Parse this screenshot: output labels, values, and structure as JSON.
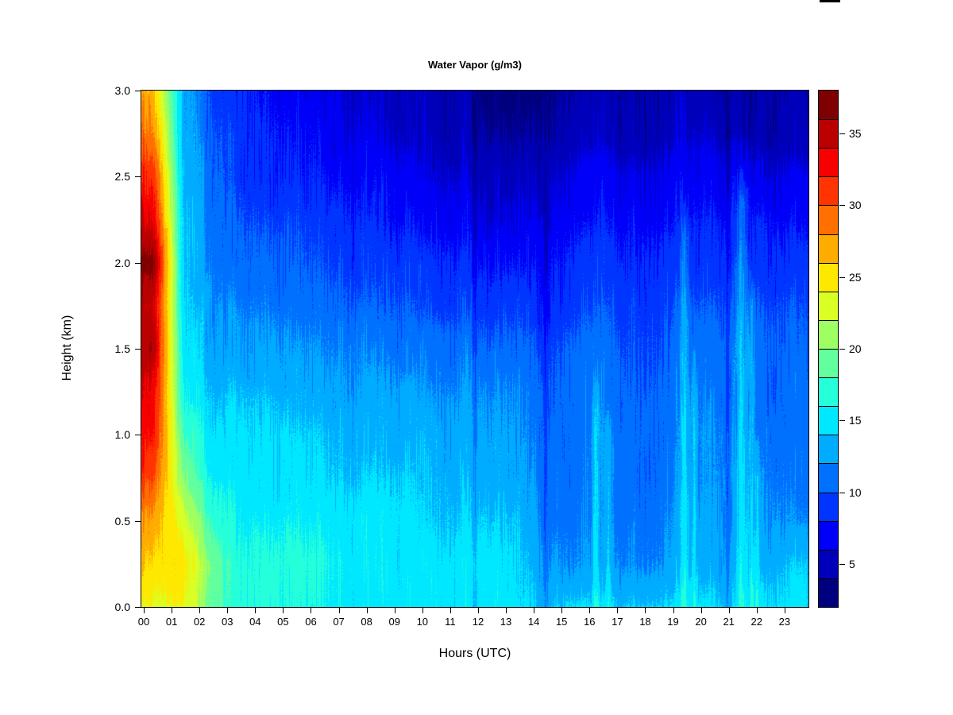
{
  "title": "Water Vapor (g/m3)",
  "x_axis": {
    "label": "Hours (UTC)",
    "ticks": [
      "00",
      "01",
      "02",
      "03",
      "04",
      "05",
      "06",
      "07",
      "08",
      "09",
      "10",
      "11",
      "12",
      "13",
      "14",
      "15",
      "16",
      "17",
      "18",
      "19",
      "20",
      "21",
      "22",
      "23"
    ]
  },
  "y_axis": {
    "label": "Height (km)",
    "ticks": [
      "3.0",
      "2.5",
      "2.0",
      "1.5",
      "1.0",
      "0.5",
      "0.0"
    ]
  },
  "colorbar": {
    "tick_values": [
      35,
      30,
      25,
      20,
      15,
      10,
      5
    ],
    "min": 2,
    "max": 38
  },
  "chart_data": {
    "type": "heatmap",
    "title": "Water Vapor (g/m3)",
    "xlabel": "Hours (UTC)",
    "ylabel": "Height (km)",
    "xlim": [
      0,
      24
    ],
    "ylim": [
      0,
      3
    ],
    "zlim": [
      2,
      38
    ],
    "legend_position": "right",
    "grid": false,
    "x_hours": [
      0,
      1,
      2,
      3,
      4,
      5,
      6,
      7,
      8,
      9,
      10,
      11,
      12,
      13,
      14,
      15,
      16,
      17,
      18,
      19,
      20,
      21,
      22,
      23
    ],
    "y_heights_km": [
      3.0,
      2.75,
      2.5,
      2.25,
      2.0,
      1.75,
      1.5,
      1.25,
      1.0,
      0.75,
      0.5,
      0.25,
      0.0
    ],
    "values_g_m3": [
      [
        26,
        13,
        10,
        9,
        8,
        7,
        6.5,
        6,
        5.5,
        5,
        4.5,
        4.5,
        3,
        3,
        4,
        4.5,
        4.5,
        4.5,
        4.5,
        5,
        4.5,
        5,
        4.5,
        4.5
      ],
      [
        28,
        13,
        10.5,
        9.5,
        8.5,
        8,
        7,
        6.5,
        6,
        5.5,
        5,
        5,
        4,
        4,
        4.5,
        5,
        5.5,
        5,
        5,
        6,
        5.5,
        6,
        5,
        5
      ],
      [
        31,
        13.5,
        11,
        9.5,
        9,
        8.5,
        8,
        7.5,
        7,
        6.5,
        6,
        6,
        5,
        5.5,
        6,
        6.5,
        7,
        6.5,
        6.5,
        7,
        7,
        8,
        6.5,
        6.5
      ],
      [
        33,
        14,
        11.5,
        10.5,
        10,
        10,
        9,
        8.5,
        8,
        7.5,
        7,
        7,
        6,
        6.5,
        7,
        7.5,
        8,
        7.5,
        7.5,
        8,
        8,
        9,
        8,
        7.5
      ],
      [
        36.5,
        14,
        12,
        11,
        11,
        10.5,
        10,
        9.5,
        9,
        9,
        8.5,
        8.5,
        7.5,
        8,
        8,
        8.5,
        9,
        8.5,
        8.5,
        9,
        9,
        10,
        9,
        9
      ],
      [
        34,
        14.5,
        12.5,
        12,
        12,
        11.5,
        11,
        10.5,
        10,
        10,
        9.5,
        9.5,
        9,
        9.5,
        9,
        9.5,
        10,
        9.5,
        9.5,
        10,
        10,
        11,
        10,
        10
      ],
      [
        35,
        15,
        13,
        13,
        13,
        12.5,
        12,
        12,
        11.5,
        11,
        11,
        11,
        10.5,
        11,
        10,
        10.5,
        11,
        10,
        10,
        11,
        11,
        12,
        11,
        10.5
      ],
      [
        33,
        16,
        14,
        14,
        14,
        13.5,
        13,
        12.5,
        12.5,
        12.5,
        12,
        12,
        12,
        12,
        11,
        11,
        11.5,
        10.5,
        10.5,
        11.5,
        11.5,
        12,
        11,
        11
      ],
      [
        32,
        18,
        15,
        15,
        15,
        14.5,
        14,
        13.5,
        13,
        13,
        13,
        13,
        12.5,
        12.5,
        11.5,
        11,
        12,
        11,
        11,
        12,
        12,
        12.5,
        11.5,
        11
      ],
      [
        30,
        20,
        16,
        15.5,
        15,
        15,
        14.5,
        14,
        14,
        14,
        13.5,
        13.5,
        13,
        13,
        12,
        11,
        12,
        11,
        11,
        12,
        12,
        13,
        12,
        11.5
      ],
      [
        27,
        23,
        18,
        16,
        16,
        16,
        15.5,
        15,
        15,
        14.5,
        14,
        14,
        14,
        14,
        12,
        11.5,
        12,
        11.5,
        11.5,
        12.5,
        12.5,
        13,
        12.5,
        12
      ],
      [
        25.5,
        25,
        20,
        17,
        17,
        17,
        16.5,
        15.5,
        15,
        15,
        15,
        15,
        15,
        14.5,
        13,
        12,
        12.5,
        12,
        12,
        13,
        13,
        13.5,
        13.5,
        14
      ],
      [
        23.5,
        24,
        19.5,
        17,
        17,
        16.5,
        16,
        15.5,
        15,
        15,
        15,
        15,
        15,
        15,
        14,
        14.5,
        14.2,
        14.2,
        14.2,
        14.5,
        14.5,
        14.5,
        15,
        15
      ]
    ],
    "palette_low_to_high": [
      "#00007F",
      "#0000BB",
      "#0000F8",
      "#0034FF",
      "#0070FF",
      "#00ACFF",
      "#00E8FF",
      "#25FFDA",
      "#61FF9E",
      "#9DFF61",
      "#DAFF25",
      "#FFE800",
      "#FFAC00",
      "#FF7000",
      "#FF3400",
      "#F70000",
      "#BB0000",
      "#7F0000"
    ],
    "streaks": [
      {
        "hour": 12.0,
        "width": 0.06,
        "boost": -1.6,
        "top_km": 3.0
      },
      {
        "hour": 14.52,
        "width": 0.1,
        "boost": -1.6,
        "top_km": 2.6
      },
      {
        "hour": 16.35,
        "width": 0.12,
        "boost": 2.4,
        "top_km": 1.4
      },
      {
        "hour": 16.8,
        "width": 0.1,
        "boost": 2.0,
        "top_km": 1.2
      },
      {
        "hour": 19.55,
        "width": 0.15,
        "boost": 2.6,
        "top_km": 2.4
      },
      {
        "hour": 19.9,
        "width": 0.1,
        "boost": 2.0,
        "top_km": 1.6
      },
      {
        "hour": 21.1,
        "width": 0.08,
        "boost": -2.0,
        "top_km": 3.0
      },
      {
        "hour": 21.6,
        "width": 0.18,
        "boost": 2.8,
        "top_km": 2.6
      },
      {
        "hour": 21.95,
        "width": 0.12,
        "boost": 2.4,
        "top_km": 2.0
      },
      {
        "hour": 22.15,
        "width": 0.08,
        "boost": 2.0,
        "top_km": 1.0
      }
    ]
  }
}
